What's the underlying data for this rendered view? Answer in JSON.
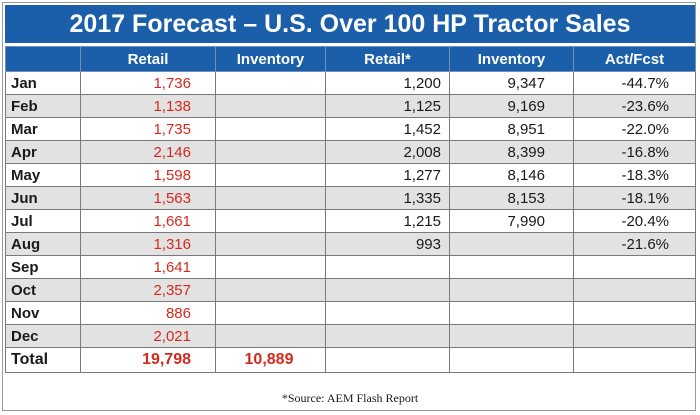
{
  "title": "2017 Forecast – U.S. Over 100 HP Tractor Sales",
  "columns": [
    "",
    "Retail",
    "Inventory",
    "Retail*",
    "Inventory",
    "Act/Fcst"
  ],
  "rows": [
    [
      "Jan",
      "1,736",
      "",
      "1,200",
      "9,347",
      "-44.7%"
    ],
    [
      "Feb",
      "1,138",
      "",
      "1,125",
      "9,169",
      "-23.6%"
    ],
    [
      "Mar",
      "1,735",
      "",
      "1,452",
      "8,951",
      "-22.0%"
    ],
    [
      "Apr",
      "2,146",
      "",
      "2,008",
      "8,399",
      "-16.8%"
    ],
    [
      "May",
      "1,598",
      "",
      "1,277",
      "8,146",
      "-18.3%"
    ],
    [
      "Jun",
      "1,563",
      "",
      "1,335",
      "8,153",
      "-18.1%"
    ],
    [
      "Jul",
      "1,661",
      "",
      "1,215",
      "7,990",
      "-20.4%"
    ],
    [
      "Aug",
      "1,316",
      "",
      "993",
      "",
      "-21.6%"
    ],
    [
      "Sep",
      "1,641",
      "",
      "",
      "",
      ""
    ],
    [
      "Oct",
      "2,357",
      "",
      "",
      "",
      ""
    ],
    [
      "Nov",
      "886",
      "",
      "",
      "",
      ""
    ],
    [
      "Dec",
      "2,021",
      "",
      "",
      "",
      ""
    ]
  ],
  "total": [
    "Total",
    "19,798",
    "10,889",
    "",
    "",
    ""
  ],
  "source": "*Source:  AEM Flash Report",
  "colors": {
    "header_blue": "#1b5faa",
    "retail_red": "#d42a1e",
    "stripe_gray": "#e2e2e2"
  }
}
